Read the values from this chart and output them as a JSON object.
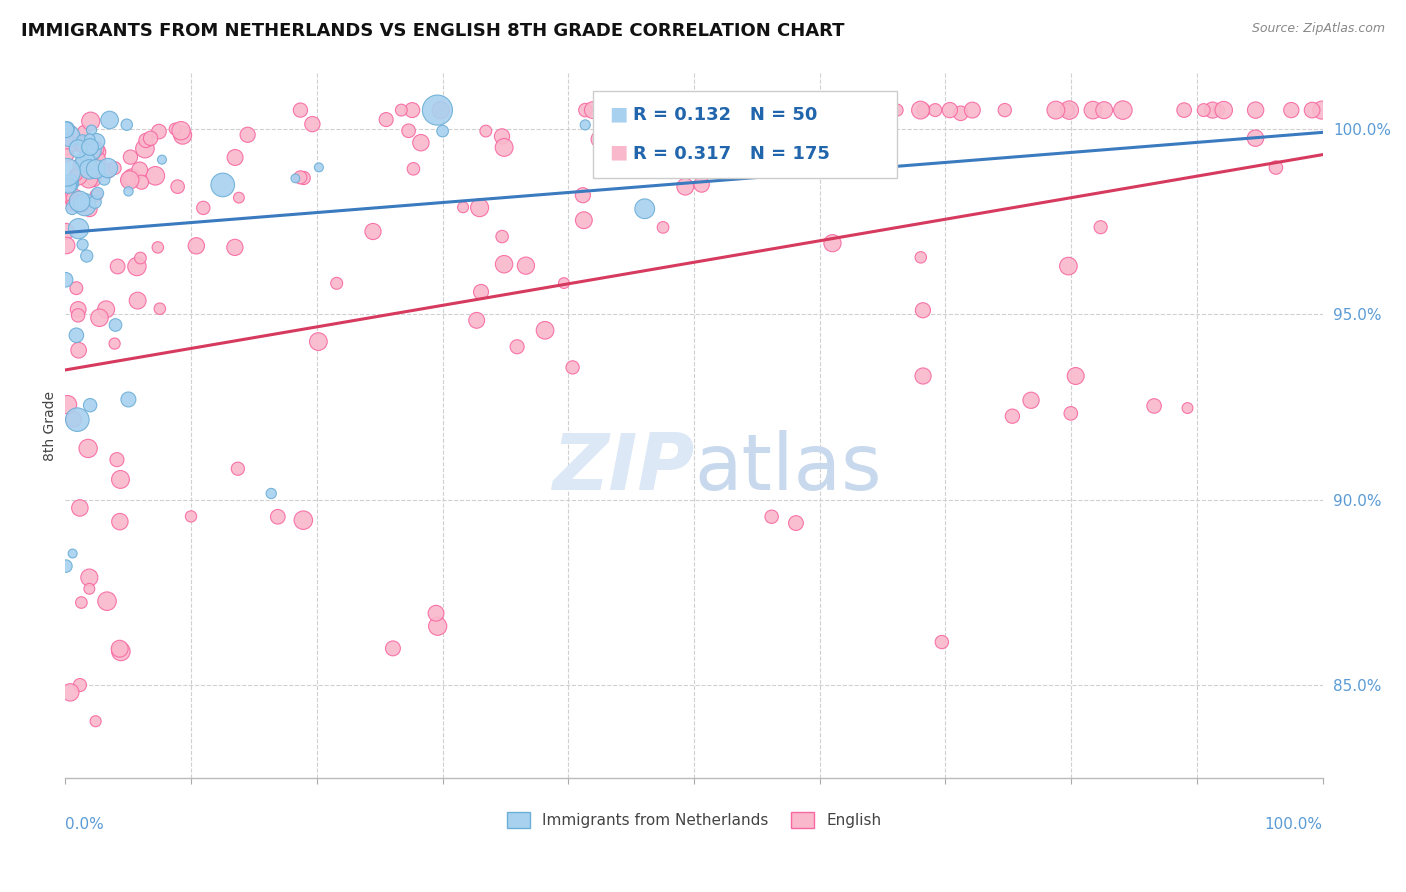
{
  "title": "IMMIGRANTS FROM NETHERLANDS VS ENGLISH 8TH GRADE CORRELATION CHART",
  "source": "Source: ZipAtlas.com",
  "ylabel": "8th Grade",
  "series1_label": "Immigrants from Netherlands",
  "series2_label": "English",
  "series1_color": "#a8d1f0",
  "series2_color": "#f9b8cb",
  "series1_edge": "#6baed6",
  "series2_edge": "#f768a1",
  "trendline1_color": "#3a7abf",
  "trendline2_color": "#d63a5e",
  "R1": 0.132,
  "N1": 50,
  "R2": 0.317,
  "N2": 175,
  "watermark_color": "#dde8f5",
  "watermark_text_color": "#c8d8ed",
  "background_color": "#ffffff",
  "title_color": "#111111",
  "title_fontsize": 13,
  "axis_color": "#5b9bd5",
  "legend_text_color": "#2166ac",
  "ylim_min": 82.5,
  "ylim_max": 101.5,
  "grid_color": "#d0d0d0"
}
